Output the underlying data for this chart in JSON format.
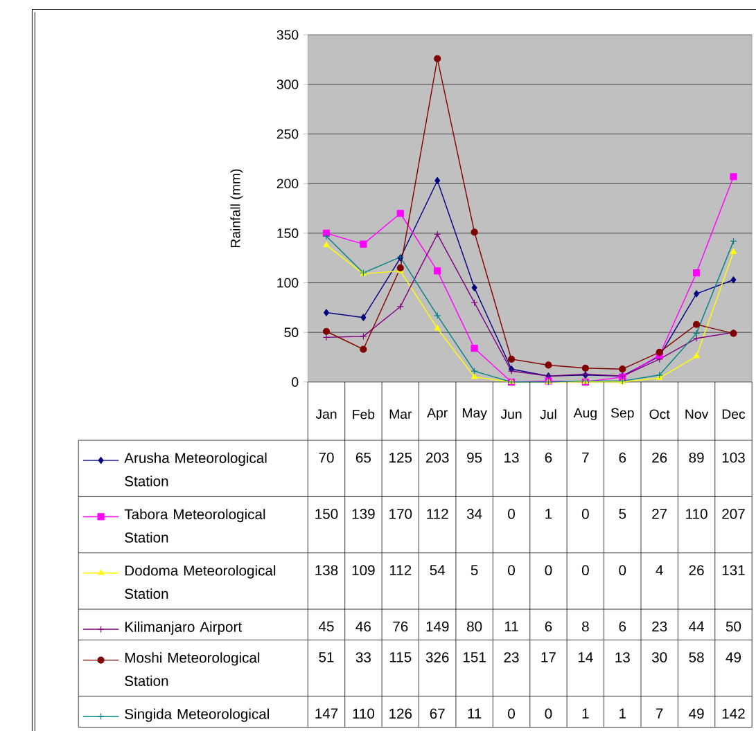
{
  "chart_data": {
    "type": "line",
    "ylabel": "Rainfall (mm)",
    "categories": [
      "Jan",
      "Feb",
      "Mar",
      "Apr",
      "May",
      "Jun",
      "Jul",
      "Aug",
      "Sep",
      "Oct",
      "Nov",
      "Dec"
    ],
    "series": [
      {
        "name": "Arusha Meteorological Station",
        "color": "#000080",
        "marker": "diamond",
        "values": [
          70,
          65,
          125,
          203,
          95,
          13,
          6,
          7,
          6,
          26,
          89,
          103
        ]
      },
      {
        "name": "Tabora Meteorological Station",
        "color": "#ff00ff",
        "marker": "square",
        "values": [
          150,
          139,
          170,
          112,
          34,
          0,
          1,
          0,
          5,
          27,
          110,
          207
        ]
      },
      {
        "name": "Dodoma Meteorological Station",
        "color": "#ffff00",
        "marker": "triangle",
        "values": [
          138,
          109,
          112,
          54,
          5,
          0,
          0,
          0,
          0,
          4,
          26,
          131
        ]
      },
      {
        "name": "Kilimanjaro Airport",
        "color": "#800080",
        "marker": "cross",
        "values": [
          45,
          46,
          76,
          149,
          80,
          11,
          6,
          8,
          6,
          23,
          44,
          50
        ]
      },
      {
        "name": "Moshi Meteorological Station",
        "color": "#800000",
        "marker": "circle",
        "values": [
          51,
          33,
          115,
          326,
          151,
          23,
          17,
          14,
          13,
          30,
          58,
          49
        ]
      },
      {
        "name": "Singida Meteorological",
        "color": "#008080",
        "marker": "cross",
        "values": [
          147,
          110,
          126,
          67,
          11,
          0,
          0,
          1,
          1,
          7,
          49,
          142
        ]
      }
    ],
    "ylim": [
      0,
      350
    ],
    "yticks": [
      0,
      50,
      100,
      150,
      200,
      250,
      300,
      350
    ],
    "grid": "y",
    "legend": "bottom",
    "data_labels": true
  }
}
